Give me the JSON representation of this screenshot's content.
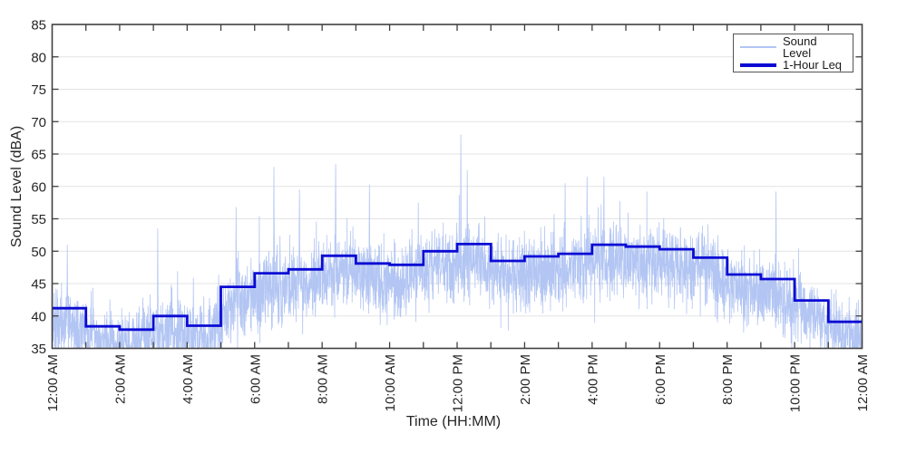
{
  "figure": {
    "background": "#ffffff",
    "frame_color": "#404040",
    "grid_color": "#e3e3e3",
    "tick_color": "#404040",
    "text_color": "#262626"
  },
  "axes": {
    "xlabel": "Time (HH:MM)",
    "ylabel": "Sound Level (dBA)",
    "ylim": [
      35,
      85
    ],
    "xlim_hours": [
      0,
      24
    ]
  },
  "legend": {
    "position": "top-right",
    "items": [
      {
        "label": "Sound Level",
        "color": "#b2c5f3",
        "weight": "thin"
      },
      {
        "label": "1-Hour Leq",
        "color": "#0b0bd3",
        "weight": "thick"
      }
    ]
  },
  "chart_data": {
    "type": "line",
    "title": "",
    "xlabel": "Time (HH:MM)",
    "ylabel": "Sound Level (dBA)",
    "xlim_hours": [
      0,
      24
    ],
    "ylim": [
      35,
      85
    ],
    "ytick_values": [
      35,
      40,
      45,
      50,
      55,
      60,
      65,
      70,
      75,
      80,
      85
    ],
    "xtick_hours": [
      0,
      2,
      4,
      6,
      8,
      10,
      12,
      14,
      16,
      18,
      20,
      22,
      24
    ],
    "xtick_labels": [
      "12:00 AM",
      "2:00 AM",
      "4:00 AM",
      "6:00 AM",
      "8:00 AM",
      "10:00 AM",
      "12:00 PM",
      "2:00 PM",
      "4:00 PM",
      "6:00 PM",
      "8:00 PM",
      "10:00 PM",
      "12:00 AM"
    ],
    "x_minor_tick_every_hours": 1,
    "grid": "y-only",
    "legend_position": "top-right",
    "series": [
      {
        "name": "Sound Level",
        "kind": "measured-noise",
        "color": "#b2c5f3",
        "line_width": 0.8,
        "description": "High-rate (~20 s) sound level samples over 24 h: quiet night band ~35-45 dBA before 5 AM and after 10 PM, daytime band ~42-56 dBA, sparse spikes listed in peaks_hour_dba",
        "noise": {
          "seed": 1337,
          "sample_seconds": 20,
          "sigma_db": 2.7,
          "base_offset_db": -2.3,
          "spike_probability": 0.006,
          "spike_mean_db": 3.5,
          "spike_sigma_db": 3.2
        },
        "peaks_hour_dba": [
          [
            0.45,
            51.0
          ],
          [
            3.13,
            53.5
          ],
          [
            5.45,
            56.8
          ],
          [
            6.57,
            63.0
          ],
          [
            7.33,
            59.5
          ],
          [
            8.4,
            63.5
          ],
          [
            9.4,
            60.3
          ],
          [
            10.85,
            57.5
          ],
          [
            12.11,
            68.0
          ],
          [
            12.3,
            62.5
          ],
          [
            15.2,
            60.5
          ],
          [
            15.85,
            61.5
          ],
          [
            16.35,
            61.5
          ],
          [
            21.45,
            59.2
          ]
        ]
      },
      {
        "name": "1-Hour Leq",
        "kind": "step-hourly",
        "color": "#0b0bd3",
        "line_width": 2.8,
        "hours": [
          0,
          1,
          2,
          3,
          4,
          5,
          6,
          7,
          8,
          9,
          10,
          11,
          12,
          13,
          14,
          15,
          16,
          17,
          18,
          19,
          20,
          21,
          22,
          23
        ],
        "values": [
          41.2,
          38.4,
          37.9,
          40.0,
          38.5,
          44.5,
          46.6,
          47.2,
          49.3,
          48.1,
          47.9,
          50.0,
          51.1,
          48.5,
          49.2,
          49.6,
          51.0,
          50.7,
          50.3,
          49.0,
          46.4,
          45.7,
          42.4,
          39.1
        ]
      }
    ]
  }
}
